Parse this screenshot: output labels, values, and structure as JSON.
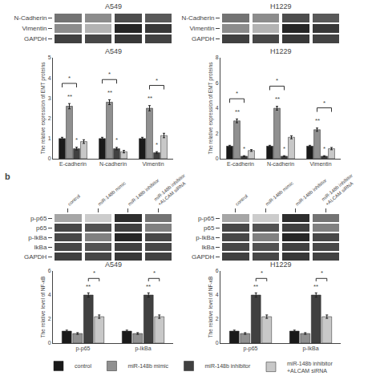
{
  "chart_data": [
    {
      "type": "heatmap",
      "title": "A549",
      "rows": [
        "N-Cadherin",
        "Vimentin",
        "GAPDH"
      ],
      "cells": [
        [
          0.55,
          0.45,
          0.7,
          0.65
        ],
        [
          0.45,
          0.3,
          0.85,
          0.78
        ],
        [
          0.75,
          0.72,
          0.78,
          0.74
        ]
      ],
      "color_range": [
        0,
        1
      ],
      "tick_labels": "y"
    },
    {
      "type": "heatmap",
      "title": "H1229",
      "rows": [
        "N-Cadherin",
        "Vimentin",
        "GAPDH"
      ],
      "cells": [
        [
          0.55,
          0.45,
          0.7,
          0.65
        ],
        [
          0.45,
          0.3,
          0.85,
          0.78
        ],
        [
          0.75,
          0.72,
          0.78,
          0.74
        ]
      ],
      "color_range": [
        0,
        1
      ],
      "tick_labels": "y"
    },
    {
      "type": "bar",
      "title": "A549",
      "categories": [
        "E-cadherin",
        "N-cadherin",
        "Vimentin"
      ],
      "series": [
        {
          "name": "control",
          "color": "#1a1a1a",
          "values": [
            1.0,
            1.0,
            1.0
          ],
          "errors": [
            0.06,
            0.06,
            0.06
          ]
        },
        {
          "name": "miR-148b mimic",
          "color": "#909090",
          "values": [
            2.6,
            2.8,
            2.5
          ],
          "errors": [
            0.13,
            0.12,
            0.13
          ]
        },
        {
          "name": "miR-148b inhibitor",
          "color": "#404040",
          "values": [
            0.5,
            0.5,
            0.3
          ],
          "errors": [
            0.07,
            0.06,
            0.05
          ]
        },
        {
          "name": "miR-148b inhibitor\n+ALCAM siRNA",
          "color": "#c8c8c8",
          "values": [
            0.85,
            0.35,
            1.15
          ],
          "errors": [
            0.09,
            0.06,
            0.11
          ]
        }
      ],
      "ylabel": "The relative expression of EMT proteins",
      "ylim": [
        0,
        5
      ],
      "yticks": [
        0,
        1,
        2,
        3,
        4,
        5
      ],
      "grid": false,
      "legend": "bottom",
      "annotations": [
        {
          "text": "**",
          "category": "E-cadherin",
          "series": "miR-148b mimic"
        },
        {
          "text": "*",
          "category": "E-cadherin",
          "series": "miR-148b inhibitor"
        },
        {
          "text": "*",
          "category": "E-cadherin",
          "series": [
            "control",
            "miR-148b inhibitor"
          ]
        },
        {
          "text": "**",
          "category": "N-cadherin",
          "series": "miR-148b mimic"
        },
        {
          "text": "*",
          "category": "N-cadherin",
          "series": "miR-148b inhibitor"
        },
        {
          "text": "*",
          "category": "N-cadherin",
          "series": [
            "control",
            "miR-148b inhibitor"
          ]
        },
        {
          "text": "**",
          "category": "Vimentin",
          "series": "miR-148b mimic"
        },
        {
          "text": "*",
          "category": "Vimentin",
          "series": "miR-148b inhibitor"
        },
        {
          "text": "*",
          "category": "Vimentin",
          "series": [
            "miR-148b mimic",
            "miR-148b inhibitor\n+ALCAM siRNA"
          ]
        }
      ]
    },
    {
      "type": "bar",
      "title": "H1229",
      "categories": [
        "E-cadherin",
        "N-cadherin",
        "Vimentin"
      ],
      "series": [
        {
          "name": "control",
          "color": "#1a1a1a",
          "values": [
            1.0,
            1.0,
            1.0
          ],
          "errors": [
            0.06,
            0.06,
            0.06
          ]
        },
        {
          "name": "miR-148b mimic",
          "color": "#909090",
          "values": [
            3.0,
            4.0,
            2.3
          ],
          "errors": [
            0.15,
            0.15,
            0.13
          ]
        },
        {
          "name": "miR-148b inhibitor",
          "color": "#404040",
          "values": [
            0.2,
            0.2,
            0.2
          ],
          "errors": [
            0.04,
            0.04,
            0.04
          ]
        },
        {
          "name": "miR-148b inhibitor\n+ALCAM siRNA",
          "color": "#c8c8c8",
          "values": [
            0.65,
            1.7,
            0.8
          ],
          "errors": [
            0.07,
            0.12,
            0.09
          ]
        }
      ],
      "ylabel": "The relative expression of EMT proteins",
      "ylim": [
        0,
        8
      ],
      "yticks": [
        0,
        2,
        4,
        6,
        8
      ],
      "grid": false,
      "legend": "bottom",
      "annotations": [
        {
          "text": "**",
          "category": "E-cadherin",
          "series": "miR-148b mimic"
        },
        {
          "text": "*",
          "category": "E-cadherin",
          "series": "miR-148b inhibitor"
        },
        {
          "text": "*",
          "category": "E-cadherin",
          "series": [
            "control",
            "miR-148b inhibitor"
          ]
        },
        {
          "text": "**",
          "category": "N-cadherin",
          "series": "miR-148b mimic"
        },
        {
          "text": "*",
          "category": "N-cadherin",
          "series": "miR-148b inhibitor"
        },
        {
          "text": "*",
          "category": "N-cadherin",
          "series": [
            "control",
            "miR-148b inhibitor"
          ]
        },
        {
          "text": "**",
          "category": "Vimentin",
          "series": "miR-148b mimic"
        },
        {
          "text": "*",
          "category": "Vimentin",
          "series": "miR-148b inhibitor"
        },
        {
          "text": "*",
          "category": "Vimentin",
          "series": [
            "miR-148b mimic",
            "miR-148b inhibitor\n+ALCAM siRNA"
          ]
        }
      ]
    },
    {
      "type": "heatmap",
      "rows": [
        "p-p65",
        "p65",
        "p-IkBa",
        "IkBa",
        "GAPDH"
      ],
      "columns": [
        "control",
        "miR-148b mimic",
        "miR-148b inhibitor",
        "miR-148b inhibitor\n+ALCAM siRNA"
      ],
      "cells": [
        [
          0.35,
          0.2,
          0.82,
          0.55
        ],
        [
          0.72,
          0.68,
          0.75,
          0.5
        ],
        [
          0.72,
          0.5,
          0.85,
          0.72
        ],
        [
          0.72,
          0.68,
          0.75,
          0.72
        ],
        [
          0.75,
          0.72,
          0.78,
          0.74
        ]
      ],
      "color_range": [
        0,
        1
      ],
      "annotations": [
        {
          "text": "b"
        }
      ]
    },
    {
      "type": "heatmap",
      "rows": [
        "p-p65",
        "p65",
        "p-IkBa",
        "IkBa",
        "GAPDH"
      ],
      "columns": [
        "control",
        "miR-148b mimic",
        "miR-148b inhibitor",
        "miR-148b inhibitor\n+ALCAM siRNA"
      ],
      "cells": [
        [
          0.35,
          0.2,
          0.82,
          0.55
        ],
        [
          0.72,
          0.68,
          0.75,
          0.5
        ],
        [
          0.72,
          0.5,
          0.85,
          0.72
        ],
        [
          0.72,
          0.68,
          0.75,
          0.72
        ],
        [
          0.75,
          0.72,
          0.78,
          0.74
        ]
      ],
      "color_range": [
        0,
        1
      ]
    },
    {
      "type": "bar",
      "title": "A549",
      "categories": [
        "p-p65",
        "p-IkBa"
      ],
      "series": [
        {
          "name": "control",
          "color": "#1a1a1a",
          "values": [
            1.0,
            1.0
          ],
          "errors": [
            0.08,
            0.08
          ]
        },
        {
          "name": "miR-148b mimic",
          "color": "#909090",
          "values": [
            0.8,
            0.8
          ],
          "errors": [
            0.07,
            0.07
          ]
        },
        {
          "name": "miR-148b inhibitor",
          "color": "#404040",
          "values": [
            4.0,
            4.0
          ],
          "errors": [
            0.18,
            0.18
          ]
        },
        {
          "name": "miR-148b inhibitor\n+ALCAM siRNA",
          "color": "#c8c8c8",
          "values": [
            2.2,
            2.2
          ],
          "errors": [
            0.14,
            0.14
          ]
        }
      ],
      "ylabel": "The relative level of NF-κB",
      "ylim": [
        0,
        6
      ],
      "yticks": [
        0,
        2,
        4,
        6
      ],
      "grid": false,
      "legend": "bottom",
      "annotations": [
        {
          "text": "**",
          "category": "p-p65",
          "series": "miR-148b inhibitor"
        },
        {
          "text": "*",
          "category": "p-p65",
          "series": [
            "miR-148b inhibitor",
            "miR-148b inhibitor\n+ALCAM siRNA"
          ]
        },
        {
          "text": "**",
          "category": "p-IkBa",
          "series": "miR-148b inhibitor"
        },
        {
          "text": "*",
          "category": "p-IkBa",
          "series": [
            "miR-148b inhibitor",
            "miR-148b inhibitor\n+ALCAM siRNA"
          ]
        }
      ]
    },
    {
      "type": "bar",
      "title": "H1229",
      "categories": [
        "p-p65",
        "p-IkBa"
      ],
      "series": [
        {
          "name": "control",
          "color": "#1a1a1a",
          "values": [
            1.0,
            1.0
          ],
          "errors": [
            0.08,
            0.08
          ]
        },
        {
          "name": "miR-148b mimic",
          "color": "#909090",
          "values": [
            0.8,
            0.8
          ],
          "errors": [
            0.07,
            0.07
          ]
        },
        {
          "name": "miR-148b inhibitor",
          "color": "#404040",
          "values": [
            4.0,
            4.0
          ],
          "errors": [
            0.18,
            0.18
          ]
        },
        {
          "name": "miR-148b inhibitor\n+ALCAM siRNA",
          "color": "#c8c8c8",
          "values": [
            2.2,
            2.2
          ],
          "errors": [
            0.14,
            0.14
          ]
        }
      ],
      "ylabel": "The relative level of NF-κB",
      "ylim": [
        0,
        6
      ],
      "yticks": [
        0,
        2,
        4,
        6
      ],
      "grid": false,
      "legend": "bottom",
      "annotations": [
        {
          "text": "**",
          "category": "p-p65",
          "series": "miR-148b inhibitor"
        },
        {
          "text": "*",
          "category": "p-p65",
          "series": [
            "miR-148b inhibitor",
            "miR-148b inhibitor\n+ALCAM siRNA"
          ]
        },
        {
          "text": "**",
          "category": "p-IkBa",
          "series": "miR-148b inhibitor"
        },
        {
          "text": "*",
          "category": "p-IkBa",
          "series": [
            "miR-148b inhibitor",
            "miR-148b inhibitor\n+ALCAM siRNA"
          ]
        }
      ]
    }
  ]
}
